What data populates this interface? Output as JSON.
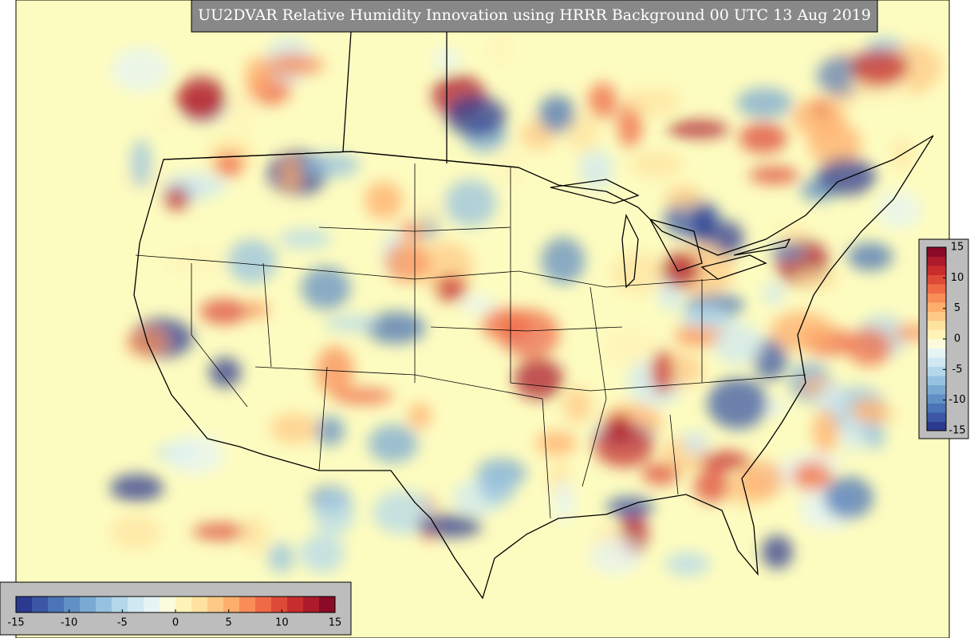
{
  "title": "UU2DVAR Relative Humidity Innovation using HRRR Background 00 UTC 13 Aug 2019",
  "colorbar": {
    "range": [
      -15,
      15
    ],
    "ticks": [
      -15,
      -10,
      -5,
      0,
      5,
      10,
      15
    ],
    "colors": [
      "#2b3a8f",
      "#3b57a4",
      "#4a74b6",
      "#6190c4",
      "#7aaad2",
      "#97c2df",
      "#b4d8ea",
      "#cfe8f1",
      "#e6f4f4",
      "#fafcdd",
      "#fff3b8",
      "#fee3a0",
      "#fdc987",
      "#fdad6c",
      "#f88d58",
      "#ef6a47",
      "#dd4a38",
      "#c72d2d",
      "#ac1a2b",
      "#8b0a26"
    ]
  }
}
